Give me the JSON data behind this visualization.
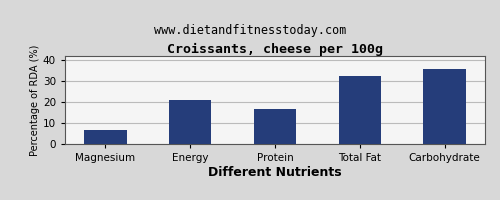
{
  "title": "Croissants, cheese per 100g",
  "subtitle": "www.dietandfitnesstoday.com",
  "xlabel": "Different Nutrients",
  "ylabel": "Percentage of RDA (%)",
  "categories": [
    "Magnesium",
    "Energy",
    "Protein",
    "Total Fat",
    "Carbohydrate"
  ],
  "values": [
    6.5,
    21,
    16.5,
    32.5,
    36
  ],
  "bar_color": "#253d7a",
  "ylim": [
    0,
    42
  ],
  "yticks": [
    0,
    10,
    20,
    30,
    40
  ],
  "background_color": "#d8d8d8",
  "plot_bg_color": "#f5f5f5",
  "grid_color": "#bbbbbb",
  "border_color": "#555555",
  "title_fontsize": 9.5,
  "subtitle_fontsize": 8.5,
  "xlabel_fontsize": 9,
  "ylabel_fontsize": 7,
  "tick_fontsize": 7.5,
  "bar_width": 0.5
}
